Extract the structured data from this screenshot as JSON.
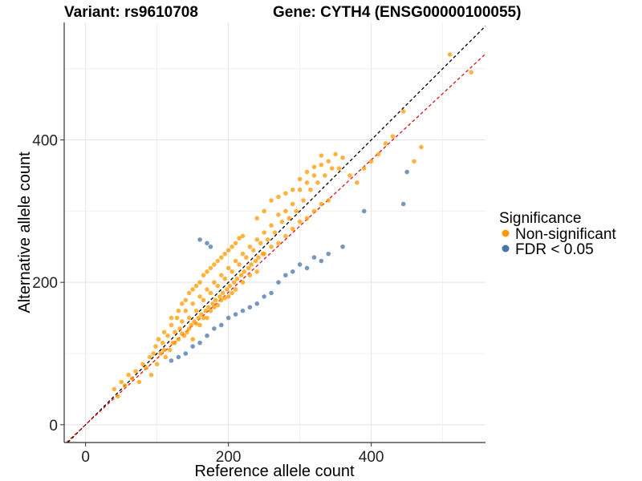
{
  "chart_data": {
    "type": "scatter",
    "title_left": "Variant: rs9610708",
    "title_right": "Gene: CYTH4 (ENSG00000100055)",
    "xlabel": "Reference allele count",
    "ylabel": "Alternative allele count",
    "xlim": [
      -30,
      560
    ],
    "ylim": [
      -25,
      565
    ],
    "xticks": [
      0,
      200,
      400
    ],
    "yticks": [
      0,
      200,
      400
    ],
    "grid": true,
    "legend": {
      "title": "Significance",
      "position": "right",
      "entries": [
        {
          "label": "Non-significant",
          "color": "#FF9900"
        },
        {
          "label": "FDR < 0.05",
          "color": "#4A74A8"
        }
      ]
    },
    "reference_lines": [
      {
        "name": "identity",
        "slope": 1.0,
        "intercept": 0,
        "color": "#000000",
        "style": "dashed"
      },
      {
        "name": "fit",
        "slope": 0.93,
        "intercept": 0,
        "color": "#DD1111",
        "style": "dashed"
      }
    ],
    "series": [
      {
        "name": "Non-significant",
        "color": "#FF9900",
        "points": [
          [
            40,
            50
          ],
          [
            45,
            40
          ],
          [
            50,
            60
          ],
          [
            55,
            55
          ],
          [
            60,
            70
          ],
          [
            65,
            65
          ],
          [
            70,
            75
          ],
          [
            75,
            60
          ],
          [
            80,
            85
          ],
          [
            85,
            80
          ],
          [
            90,
            95
          ],
          [
            92,
            70
          ],
          [
            95,
            100
          ],
          [
            98,
            110
          ],
          [
            100,
            85
          ],
          [
            102,
            120
          ],
          [
            105,
            100
          ],
          [
            108,
            115
          ],
          [
            110,
            130
          ],
          [
            112,
            95
          ],
          [
            115,
            125
          ],
          [
            118,
            105
          ],
          [
            120,
            140
          ],
          [
            122,
            115
          ],
          [
            125,
            130
          ],
          [
            128,
            150
          ],
          [
            130,
            120
          ],
          [
            132,
            135
          ],
          [
            135,
            145
          ],
          [
            138,
            125
          ],
          [
            140,
            160
          ],
          [
            142,
            130
          ],
          [
            145,
            150
          ],
          [
            148,
            140
          ],
          [
            150,
            170
          ],
          [
            152,
            145
          ],
          [
            155,
            160
          ],
          [
            158,
            150
          ],
          [
            160,
            180
          ],
          [
            162,
            155
          ],
          [
            165,
            175
          ],
          [
            168,
            160
          ],
          [
            170,
            190
          ],
          [
            172,
            165
          ],
          [
            175,
            185
          ],
          [
            178,
            170
          ],
          [
            180,
            200
          ],
          [
            182,
            175
          ],
          [
            185,
            195
          ],
          [
            188,
            180
          ],
          [
            190,
            210
          ],
          [
            192,
            185
          ],
          [
            195,
            205
          ],
          [
            198,
            190
          ],
          [
            200,
            220
          ],
          [
            202,
            195
          ],
          [
            205,
            215
          ],
          [
            208,
            200
          ],
          [
            210,
            230
          ],
          [
            212,
            205
          ],
          [
            215,
            225
          ],
          [
            218,
            210
          ],
          [
            220,
            240
          ],
          [
            222,
            215
          ],
          [
            225,
            235
          ],
          [
            228,
            220
          ],
          [
            230,
            250
          ],
          [
            232,
            225
          ],
          [
            235,
            245
          ],
          [
            238,
            230
          ],
          [
            240,
            260
          ],
          [
            242,
            235
          ],
          [
            245,
            255
          ],
          [
            248,
            240
          ],
          [
            250,
            270
          ],
          [
            255,
            260
          ],
          [
            260,
            280
          ],
          [
            265,
            270
          ],
          [
            270,
            295
          ],
          [
            275,
            285
          ],
          [
            280,
            300
          ],
          [
            285,
            290
          ],
          [
            290,
            310
          ],
          [
            295,
            300
          ],
          [
            300,
            330
          ],
          [
            305,
            315
          ],
          [
            310,
            340
          ],
          [
            315,
            330
          ],
          [
            320,
            350
          ],
          [
            325,
            340
          ],
          [
            330,
            365
          ],
          [
            335,
            350
          ],
          [
            340,
            370
          ],
          [
            345,
            360
          ],
          [
            350,
            380
          ],
          [
            355,
            360
          ],
          [
            360,
            375
          ],
          [
            370,
            350
          ],
          [
            380,
            340
          ],
          [
            390,
            360
          ],
          [
            400,
            370
          ],
          [
            410,
            380
          ],
          [
            420,
            395
          ],
          [
            430,
            405
          ],
          [
            445,
            440
          ],
          [
            460,
            370
          ],
          [
            470,
            390
          ],
          [
            510,
            520
          ],
          [
            540,
            495
          ],
          [
            150,
            120
          ],
          [
            160,
            140
          ],
          [
            170,
            150
          ],
          [
            180,
            165
          ],
          [
            190,
            175
          ],
          [
            200,
            180
          ],
          [
            210,
            190
          ],
          [
            220,
            200
          ],
          [
            230,
            210
          ],
          [
            240,
            215
          ],
          [
            130,
            160
          ],
          [
            140,
            175
          ],
          [
            150,
            190
          ],
          [
            160,
            200
          ],
          [
            170,
            215
          ],
          [
            180,
            225
          ],
          [
            190,
            235
          ],
          [
            200,
            245
          ],
          [
            210,
            255
          ],
          [
            220,
            265
          ],
          [
            120,
            150
          ],
          [
            135,
            170
          ],
          [
            145,
            185
          ],
          [
            155,
            195
          ],
          [
            165,
            210
          ],
          [
            175,
            220
          ],
          [
            185,
            230
          ],
          [
            195,
            240
          ],
          [
            205,
            250
          ],
          [
            215,
            262
          ],
          [
            110,
            105
          ],
          [
            125,
            115
          ],
          [
            135,
            128
          ],
          [
            145,
            135
          ],
          [
            155,
            142
          ],
          [
            165,
            150
          ],
          [
            175,
            160
          ],
          [
            185,
            168
          ],
          [
            195,
            178
          ],
          [
            205,
            185
          ],
          [
            250,
            240
          ],
          [
            260,
            250
          ],
          [
            270,
            255
          ],
          [
            280,
            265
          ],
          [
            290,
            275
          ],
          [
            300,
            285
          ],
          [
            310,
            290
          ],
          [
            320,
            300
          ],
          [
            330,
            310
          ],
          [
            340,
            315
          ],
          [
            240,
            290
          ],
          [
            250,
            300
          ],
          [
            260,
            315
          ],
          [
            270,
            320
          ],
          [
            280,
            325
          ],
          [
            290,
            330
          ],
          [
            300,
            345
          ],
          [
            310,
            355
          ],
          [
            320,
            362
          ],
          [
            330,
            378
          ]
        ]
      },
      {
        "name": "FDR < 0.05",
        "color": "#4A74A8",
        "points": [
          [
            120,
            90
          ],
          [
            130,
            95
          ],
          [
            140,
            100
          ],
          [
            150,
            110
          ],
          [
            160,
            115
          ],
          [
            170,
            125
          ],
          [
            180,
            135
          ],
          [
            190,
            140
          ],
          [
            200,
            150
          ],
          [
            210,
            155
          ],
          [
            220,
            160
          ],
          [
            230,
            165
          ],
          [
            240,
            170
          ],
          [
            250,
            180
          ],
          [
            260,
            185
          ],
          [
            270,
            200
          ],
          [
            280,
            210
          ],
          [
            290,
            215
          ],
          [
            300,
            225
          ],
          [
            310,
            220
          ],
          [
            320,
            235
          ],
          [
            330,
            230
          ],
          [
            340,
            240
          ],
          [
            360,
            250
          ],
          [
            390,
            300
          ],
          [
            445,
            310
          ],
          [
            450,
            355
          ],
          [
            160,
            260
          ],
          [
            170,
            255
          ],
          [
            175,
            250
          ]
        ]
      }
    ]
  }
}
